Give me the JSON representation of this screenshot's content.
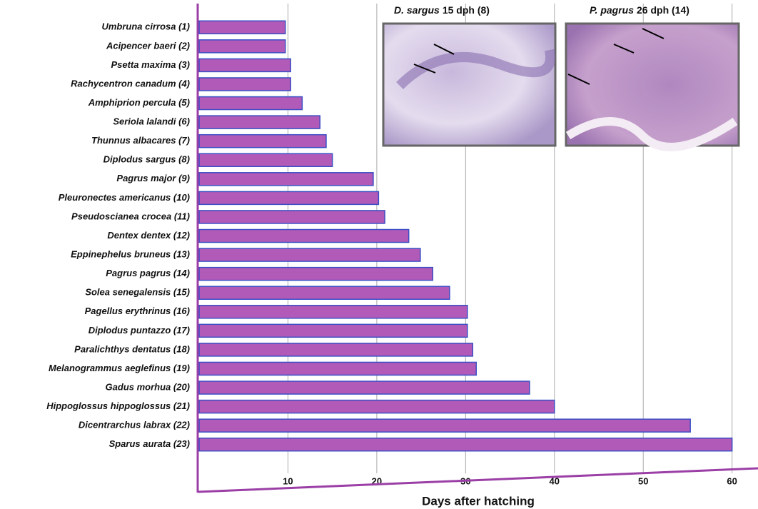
{
  "chart_data": {
    "type": "bar",
    "orientation": "horizontal",
    "x_label": "Days after hatching",
    "categories": [
      "Umbruna cirrosa (1)",
      "Acipencer baeri (2)",
      "Psetta maxima (3)",
      "Rachycentron canadum (4)",
      "Amphiprion percula (5)",
      "Seriola lalandi (6)",
      "Thunnus albacares (7)",
      "Diplodus sargus (8)",
      "Pagrus major (9)",
      "Pleuronectes americanus (10)",
      "Pseudoscianea crocea (11)",
      "Dentex dentex (12)",
      "Eppinephelus bruneus (13)",
      "Pagrus pagrus (14)",
      "Solea senegalensis (15)",
      "Pagellus erythrinus (16)",
      "Diplodus puntazzo (17)",
      "Paralichthys dentatus (18)",
      "Melanogrammus aeglefinus (19)",
      "Gadus morhua (20)",
      "Hippoglossus hippoglossus (21)",
      "Dicentrarchus labrax (22)",
      "Sparus aurata (23)"
    ],
    "values": [
      9.7,
      9.7,
      10.3,
      10.3,
      11.6,
      13.6,
      14.3,
      15,
      19.6,
      20.2,
      20.9,
      23.6,
      24.9,
      26.3,
      28.2,
      30.2,
      30.2,
      30.8,
      31.2,
      37.2,
      40,
      55.3,
      60
    ],
    "color": "#b25ab8",
    "xlim": [
      0,
      63
    ],
    "xticks": [
      10,
      20,
      30,
      40,
      50,
      60
    ],
    "grid": true,
    "insets": [
      {
        "species": "D. sargus",
        "caption": "15 dph (8)"
      },
      {
        "species": "P. pagrus",
        "caption": "26 dph (14)"
      }
    ]
  }
}
